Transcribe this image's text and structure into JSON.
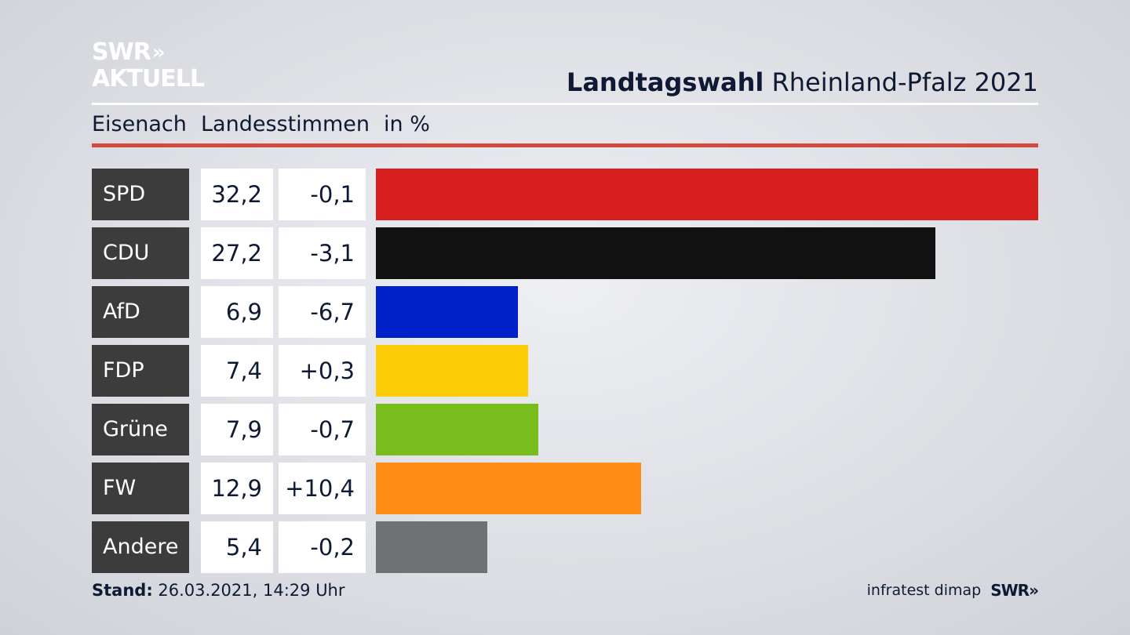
{
  "logo": {
    "line1": "SWR",
    "arrows": "»",
    "line2": "AKTUELL"
  },
  "header": {
    "title_bold": "Landtagswahl",
    "title_rest": "Rheinland-Pfalz 2021"
  },
  "subheader": {
    "region": "Eisenach",
    "metric": "Landesstimmen",
    "unit": "in %"
  },
  "chart_data": {
    "type": "bar",
    "orientation": "horizontal",
    "categories": [
      "SPD",
      "CDU",
      "AfD",
      "FDP",
      "Grüne",
      "FW",
      "Andere"
    ],
    "values": [
      32.2,
      27.2,
      6.9,
      7.4,
      7.9,
      12.9,
      5.4
    ],
    "value_labels": [
      "32,2",
      "27,2",
      "6,9",
      "7,4",
      "7,9",
      "12,9",
      "5,4"
    ],
    "change_labels": [
      "-0,1",
      "-3,1",
      "-6,7",
      "+0,3",
      "-0,7",
      "+10,4",
      "-0,2"
    ],
    "changes": [
      -0.1,
      -3.1,
      -6.7,
      0.3,
      -0.7,
      10.4,
      -0.2
    ],
    "colors": [
      "#d71f1f",
      "#111111",
      "#0020c8",
      "#ffcc0a",
      "#78bd1c",
      "#ff8c14",
      "#707172"
    ],
    "xlim": [
      0,
      32.2
    ],
    "grid": false
  },
  "footer": {
    "stand_label": "Stand:",
    "stand_value": "26.03.2021, 14:29 Uhr",
    "source": "infratest dimap",
    "brand": "SWR",
    "brand_arrows": "»"
  }
}
